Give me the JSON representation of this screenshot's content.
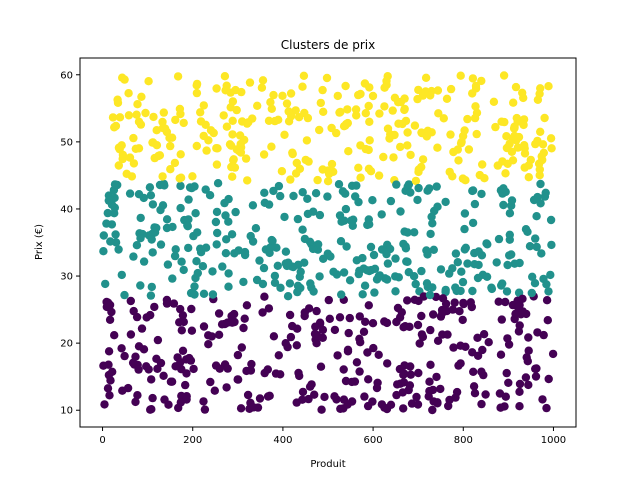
{
  "chart_data": {
    "type": "scatter",
    "title": "Clusters de prix",
    "xlabel": "Produit",
    "ylabel": "Prix (€)",
    "xlim": [
      -50,
      1050
    ],
    "ylim": [
      7.5,
      62.5
    ],
    "xticks": [
      0,
      200,
      400,
      600,
      800,
      1000
    ],
    "yticks": [
      10,
      20,
      30,
      40,
      50,
      60
    ],
    "grid": false,
    "n_points": 1000,
    "clusters": [
      {
        "color": "#fde725",
        "y_range": [
          44,
          60
        ]
      },
      {
        "color": "#21918c",
        "y_range": [
          27,
          44
        ]
      },
      {
        "color": "#440154",
        "y_range": [
          10,
          27
        ]
      }
    ]
  }
}
